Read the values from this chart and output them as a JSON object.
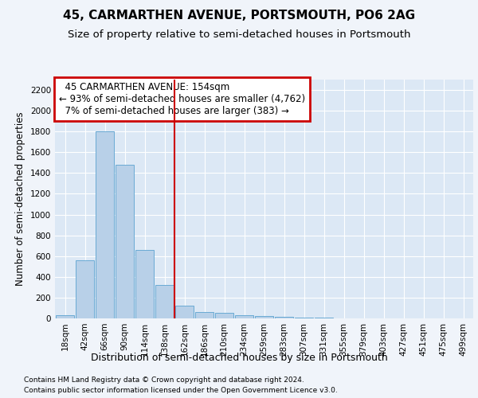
{
  "title1": "45, CARMARTHEN AVENUE, PORTSMOUTH, PO6 2AG",
  "title2": "Size of property relative to semi-detached houses in Portsmouth",
  "xlabel": "Distribution of semi-detached houses by size in Portsmouth",
  "ylabel": "Number of semi-detached properties",
  "footnote1": "Contains HM Land Registry data © Crown copyright and database right 2024.",
  "footnote2": "Contains public sector information licensed under the Open Government Licence v3.0.",
  "bar_labels": [
    "18sqm",
    "42sqm",
    "66sqm",
    "90sqm",
    "114sqm",
    "138sqm",
    "162sqm",
    "186sqm",
    "210sqm",
    "234sqm",
    "259sqm",
    "283sqm",
    "307sqm",
    "331sqm",
    "355sqm",
    "379sqm",
    "403sqm",
    "427sqm",
    "451sqm",
    "475sqm",
    "499sqm"
  ],
  "bar_values": [
    30,
    560,
    1800,
    1480,
    660,
    320,
    120,
    65,
    55,
    30,
    20,
    15,
    10,
    5,
    2,
    1,
    1,
    0,
    0,
    0,
    0
  ],
  "bar_color": "#b8d0e8",
  "bar_edge_color": "#6aaad4",
  "property_line_bin": 6,
  "property_label": "45 CARMARTHEN AVENUE: 154sqm",
  "pct_smaller": 93,
  "count_smaller": 4762,
  "pct_larger": 7,
  "count_larger": 383,
  "annotation_box_color": "#cc0000",
  "vline_color": "#cc0000",
  "ylim": [
    0,
    2300
  ],
  "yticks": [
    0,
    200,
    400,
    600,
    800,
    1000,
    1200,
    1400,
    1600,
    1800,
    2000,
    2200
  ],
  "bg_color": "#f0f4fa",
  "plot_bg_color": "#dce8f5",
  "title1_fontsize": 11,
  "title2_fontsize": 9.5,
  "xlabel_fontsize": 9,
  "ylabel_fontsize": 8.5,
  "grid_color": "#ffffff",
  "tick_fontsize": 7.5
}
